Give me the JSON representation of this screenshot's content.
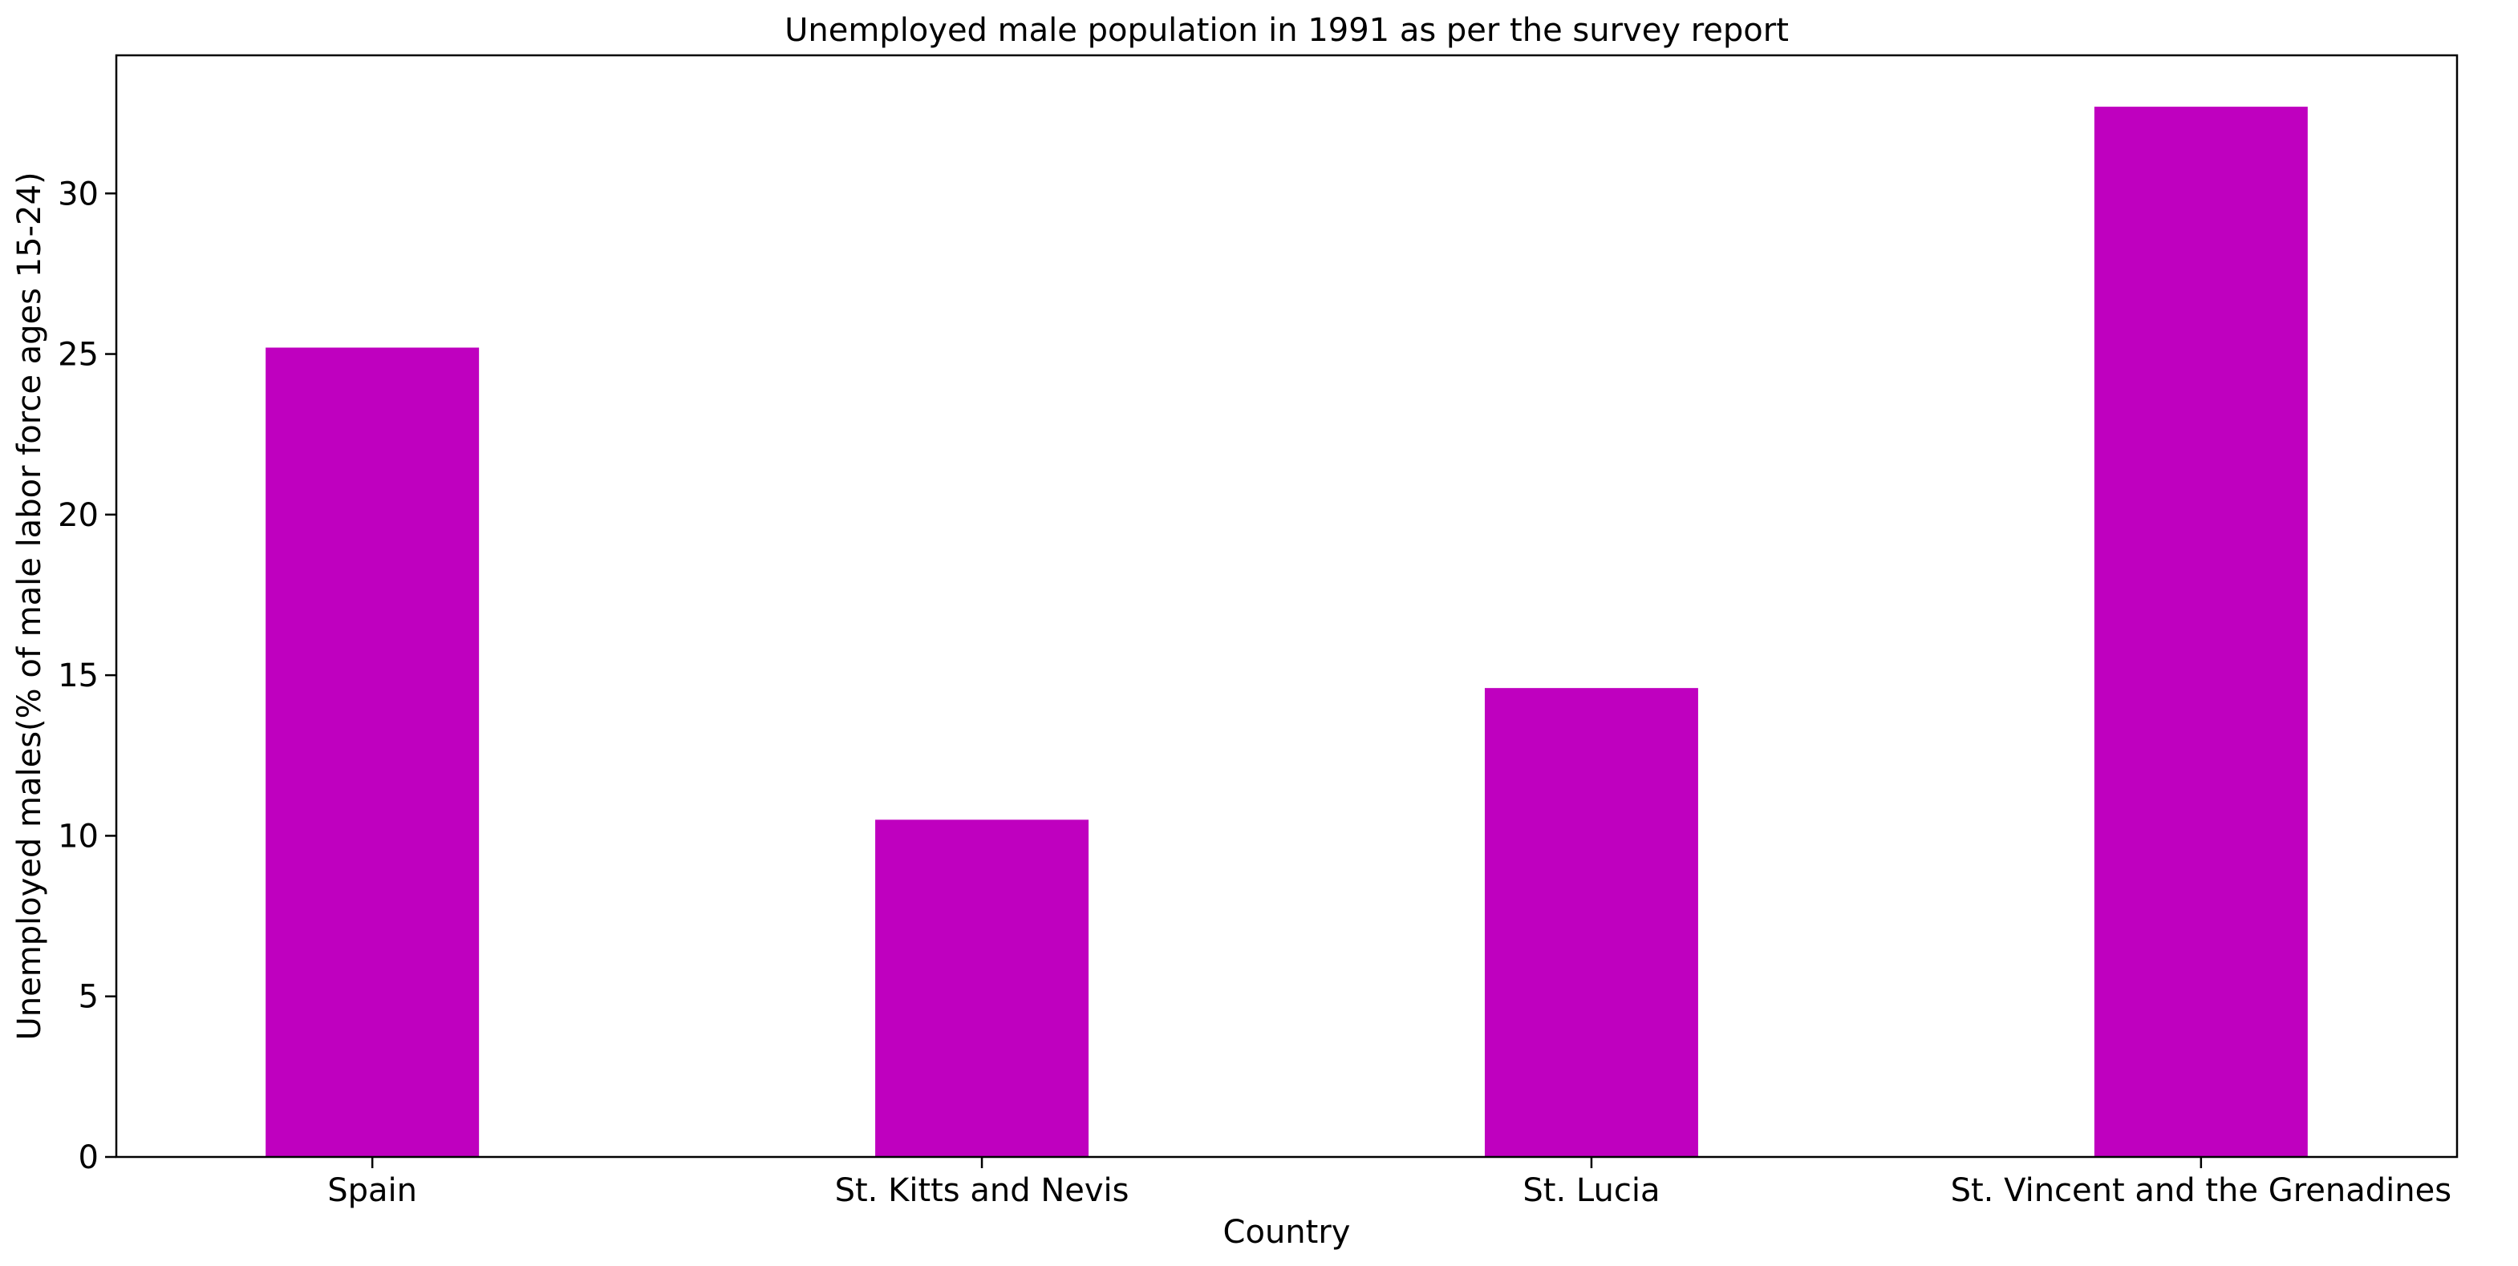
{
  "chart_data": {
    "type": "bar",
    "title": "Unemployed male population in 1991 as per the survey report",
    "xlabel": "Country",
    "ylabel": "Unemployed males(% of male labor force ages 15-24)",
    "categories": [
      "Spain",
      "St. Kitts and Nevis",
      "St. Lucia",
      "St. Vincent and the Grenadines"
    ],
    "values": [
      25.2,
      10.5,
      14.6,
      32.7
    ],
    "ylim": [
      0,
      34.3
    ],
    "yticks": [
      0,
      5,
      10,
      15,
      20,
      25,
      30
    ],
    "bar_color": "#bf00bf",
    "grid": false,
    "legend": "none"
  }
}
